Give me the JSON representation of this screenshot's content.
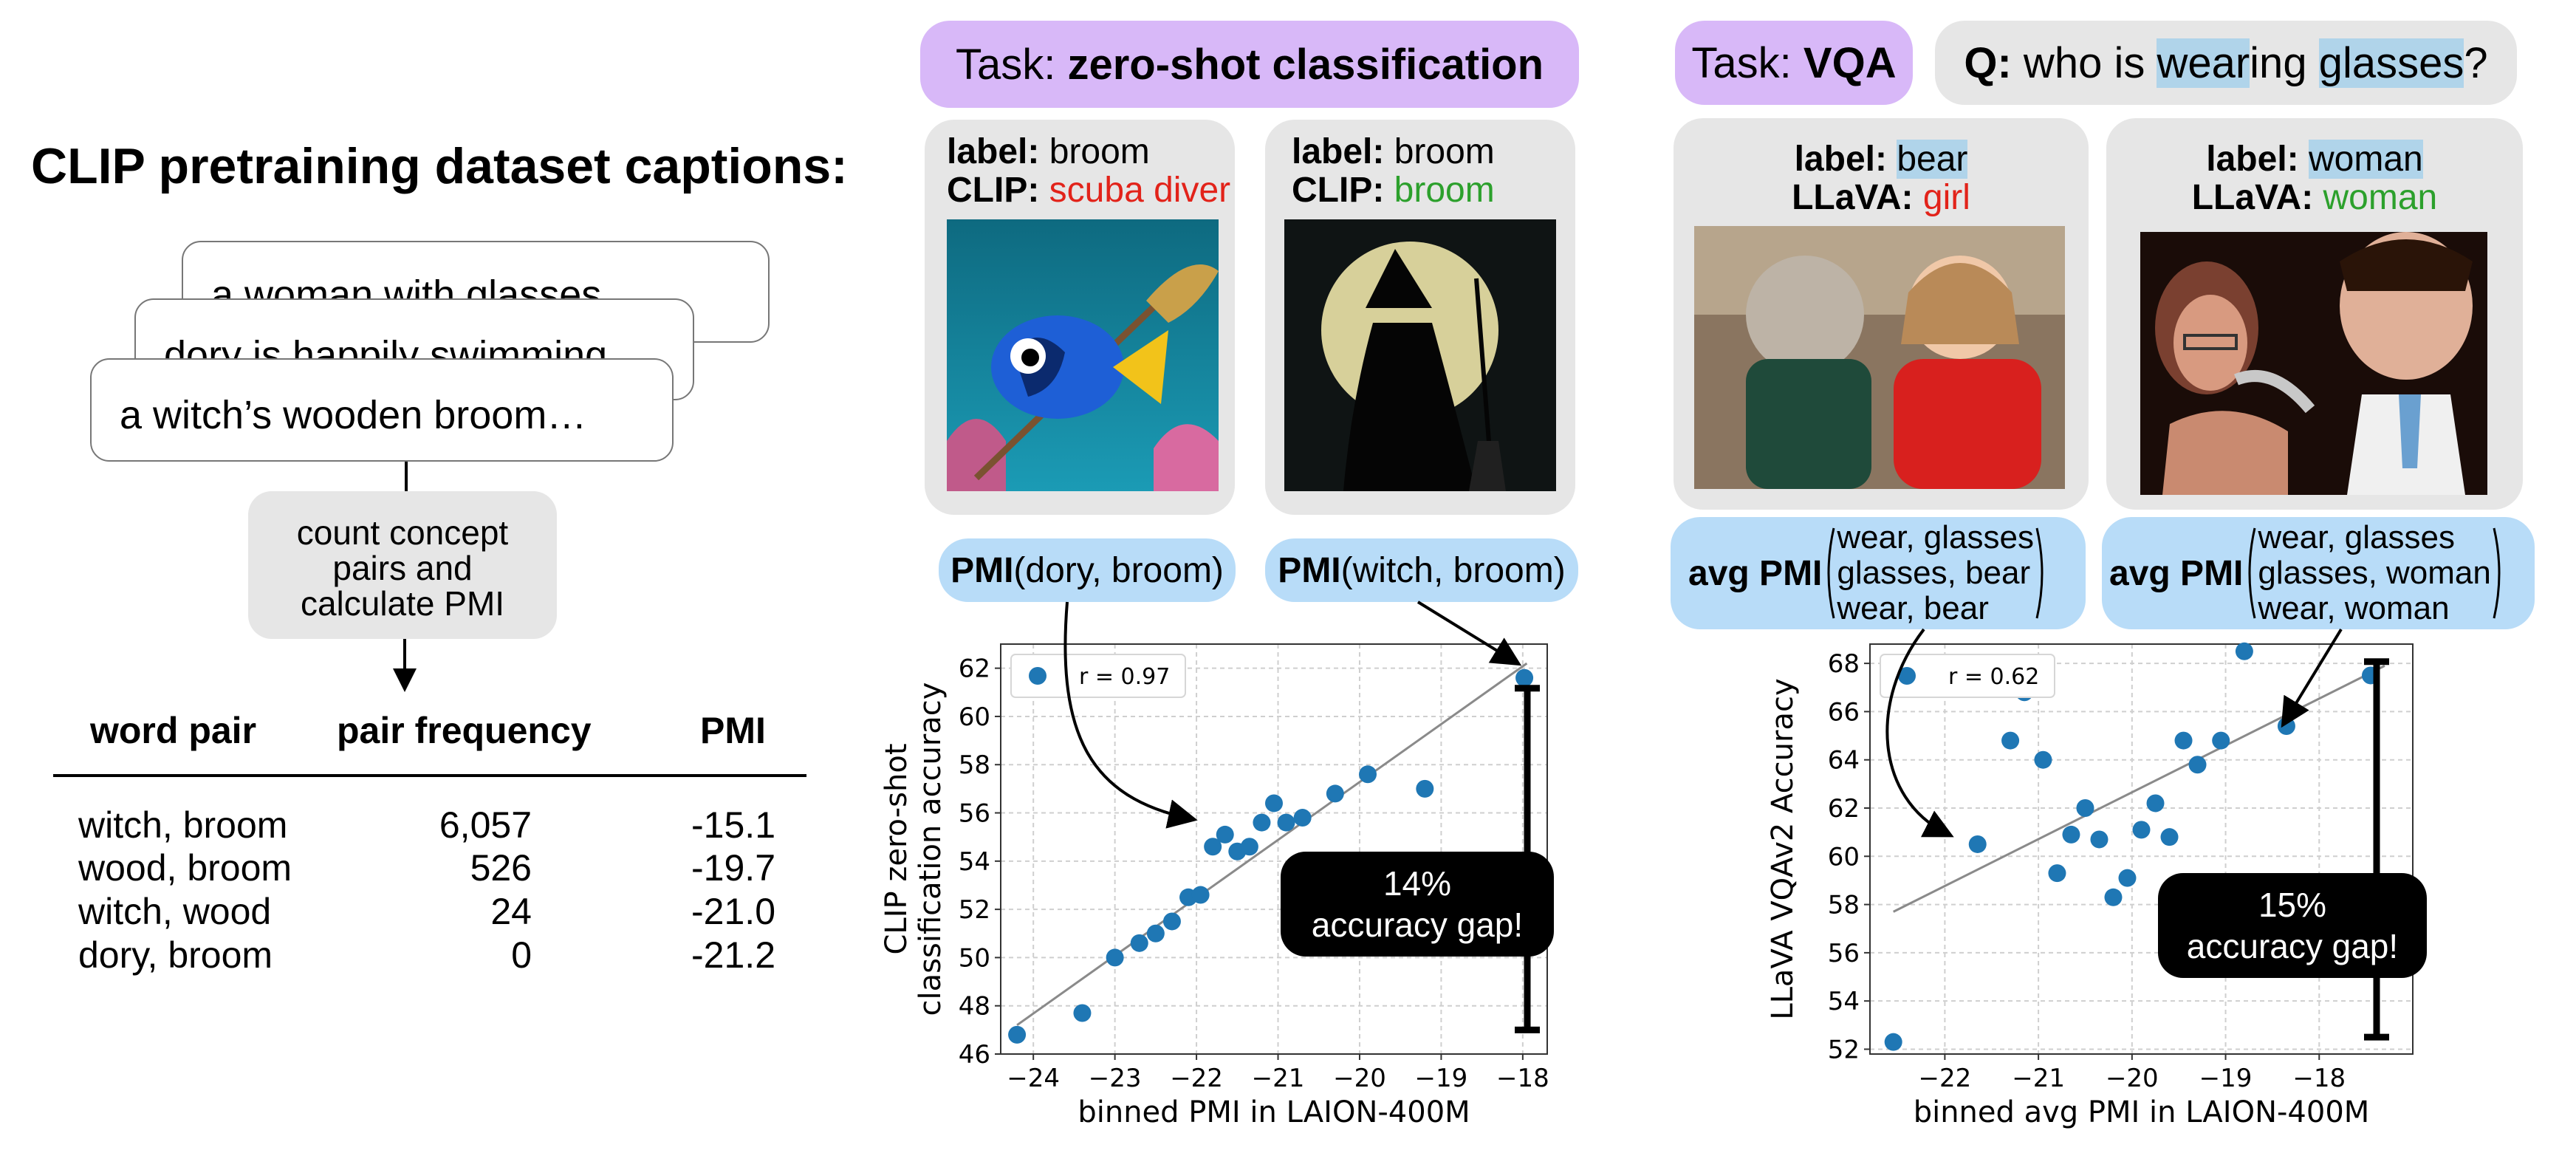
{
  "title": "CLIP pretraining dataset captions:",
  "captions": [
    "a woman with glasses…",
    "dory is happily swimming…",
    "a witch’s wooden broom…"
  ],
  "process": {
    "line1": "count concept",
    "line2": "pairs and",
    "line3": "calculate PMI"
  },
  "table": {
    "headers": [
      "word pair",
      "pair frequency",
      "PMI"
    ],
    "rows": [
      [
        "witch, broom",
        "6,057",
        "-15.1"
      ],
      [
        "wood, broom",
        "526",
        "-19.7"
      ],
      [
        "witch, wood",
        "24",
        "-21.0"
      ],
      [
        "dory, broom",
        "0",
        "-21.2"
      ]
    ]
  },
  "classification": {
    "task_prefix": "Task: ",
    "task_name": "zero-shot classification",
    "cards": [
      {
        "label_key": "label:",
        "label": "broom",
        "pred_key": "CLIP:",
        "pred": "scuba diver",
        "pred_color": "#e2231a",
        "image": "clownfish-fish-with-broom-underwater"
      },
      {
        "label_key": "label:",
        "label": "broom",
        "pred_key": "CLIP:",
        "pred": "broom",
        "pred_color": "#2ca02c",
        "image": "witch-silhouette-full-moon"
      }
    ],
    "pmi_pills": [
      {
        "bold": "PMI",
        "rest": "(dory, broom)"
      },
      {
        "bold": "PMI",
        "rest": "(witch, broom)"
      }
    ]
  },
  "vqa": {
    "task_prefix": "Task: ",
    "task_name": "VQA",
    "question": {
      "q": "Q:",
      "pre": " who is ",
      "w1": "wear",
      "mid": "ing ",
      "w2": "glasses",
      "post": "?"
    },
    "cards": [
      {
        "label_key": "label:",
        "label": "bear",
        "pred_key": "LLaVA:",
        "pred": "girl",
        "pred_color": "#e2231a",
        "image": "teddy-bear-and-girl"
      },
      {
        "label_key": "label:",
        "label": "woman",
        "pred_key": "LLaVA:",
        "pred": "woman",
        "pred_color": "#2ca02c",
        "image": "man-grimacing-woman-with-glasses"
      }
    ],
    "pmi_pills": [
      {
        "bold": "avg PMI",
        "lines": [
          "wear, glasses",
          "glasses, bear",
          "wear, bear"
        ]
      },
      {
        "bold": "avg PMI",
        "lines": [
          "wear, glasses",
          "glasses, woman",
          "wear, woman"
        ]
      }
    ]
  },
  "chart_data": [
    {
      "type": "scatter",
      "title": "",
      "xlabel": "binned PMI in LAION-400M",
      "ylabel": [
        "CLIP zero-shot",
        "classification accuracy"
      ],
      "xlim": [
        -24.4,
        -17.7
      ],
      "ylim": [
        46,
        63
      ],
      "xticks": [
        -24,
        -23,
        -22,
        -21,
        -20,
        -19,
        -18
      ],
      "yticks": [
        46,
        48,
        50,
        52,
        54,
        56,
        58,
        60,
        62
      ],
      "legend": "r = 0.97",
      "legend_position": "top-left",
      "grid": true,
      "color": "#1f77b4",
      "points": [
        [
          -24.2,
          46.8
        ],
        [
          -23.4,
          47.7
        ],
        [
          -23.0,
          50.0
        ],
        [
          -22.7,
          50.6
        ],
        [
          -22.5,
          51.0
        ],
        [
          -22.3,
          51.5
        ],
        [
          -22.1,
          52.5
        ],
        [
          -21.95,
          52.6
        ],
        [
          -21.8,
          54.6
        ],
        [
          -21.65,
          55.1
        ],
        [
          -21.5,
          54.4
        ],
        [
          -21.35,
          54.6
        ],
        [
          -21.2,
          55.6
        ],
        [
          -21.05,
          56.4
        ],
        [
          -20.9,
          55.6
        ],
        [
          -20.7,
          55.8
        ],
        [
          -20.3,
          56.8
        ],
        [
          -19.9,
          57.6
        ],
        [
          -19.2,
          57.0
        ],
        [
          -17.98,
          61.6
        ]
      ],
      "fit": [
        [
          -24.2,
          47.2
        ],
        [
          -17.95,
          62.2
        ]
      ],
      "annotation": {
        "line1": "14%",
        "line2": "accuracy gap!"
      }
    },
    {
      "type": "scatter",
      "title": "",
      "xlabel": "binned avg PMI in LAION-400M",
      "ylabel": [
        "LLaVA VQAv2 Accuracy"
      ],
      "xlim": [
        -22.8,
        -17.0
      ],
      "ylim": [
        51.8,
        68.8
      ],
      "xticks": [
        -22,
        -21,
        -20,
        -19,
        -18
      ],
      "yticks": [
        52,
        54,
        56,
        58,
        60,
        62,
        64,
        66,
        68
      ],
      "legend": "r = 0.62",
      "legend_position": "top-left",
      "grid": true,
      "color": "#1f77b4",
      "points": [
        [
          -22.55,
          52.3
        ],
        [
          -21.65,
          60.5
        ],
        [
          -21.3,
          64.8
        ],
        [
          -21.15,
          66.8
        ],
        [
          -20.95,
          64.0
        ],
        [
          -20.8,
          59.3
        ],
        [
          -20.65,
          60.9
        ],
        [
          -20.5,
          62.0
        ],
        [
          -20.35,
          60.7
        ],
        [
          -20.2,
          58.3
        ],
        [
          -20.05,
          59.1
        ],
        [
          -19.9,
          61.1
        ],
        [
          -19.75,
          62.2
        ],
        [
          -19.6,
          60.8
        ],
        [
          -19.45,
          64.8
        ],
        [
          -19.3,
          63.8
        ],
        [
          -19.05,
          64.8
        ],
        [
          -18.8,
          68.5
        ],
        [
          -18.35,
          65.4
        ],
        [
          -17.45,
          67.5
        ]
      ],
      "fit": [
        [
          -22.55,
          57.7
        ],
        [
          -17.3,
          67.9
        ]
      ],
      "annotation": {
        "line1": "15%",
        "line2": "accuracy gap!"
      }
    }
  ]
}
